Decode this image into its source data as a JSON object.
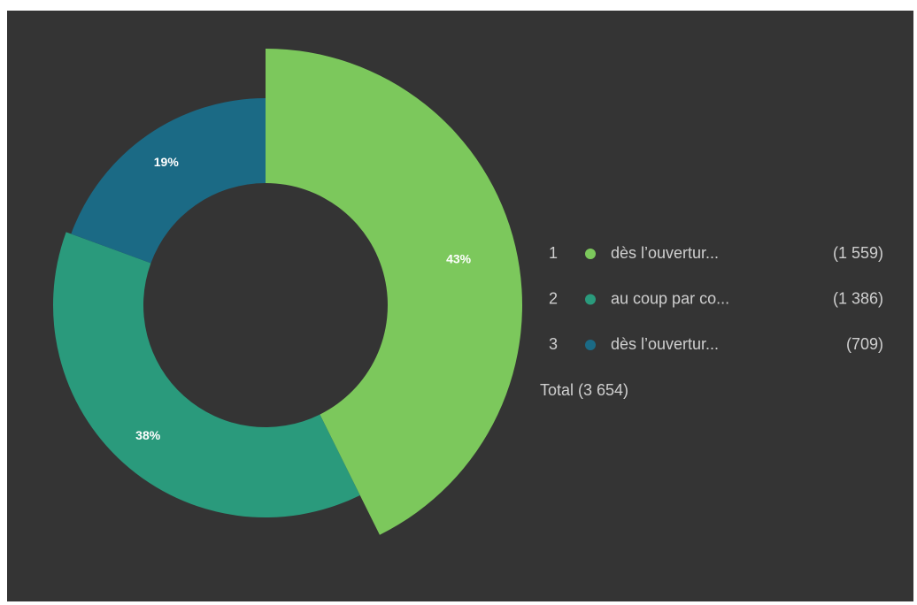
{
  "chart_data": {
    "type": "donut",
    "ranks": [
      1,
      2,
      3
    ],
    "categories": [
      "dès l’ouvertur...",
      "au coup par co...",
      "dès l’ouvertur..."
    ],
    "values": [
      1559,
      1386,
      709
    ],
    "value_labels": [
      "(1 559)",
      "(1 386)",
      "(709)"
    ],
    "percentages": [
      43,
      38,
      19
    ],
    "percentage_labels": [
      "43%",
      "38%",
      "19%"
    ],
    "colors": [
      "#7cc85c",
      "#2a9a7c",
      "#1b6a85"
    ],
    "total": 3654,
    "total_label": "Total (3 654)"
  }
}
